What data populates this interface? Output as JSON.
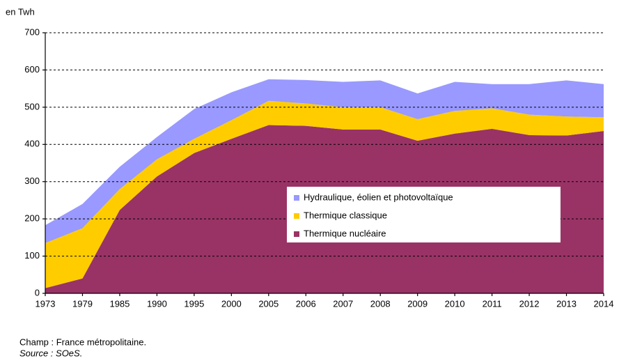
{
  "chart_data": {
    "type": "stacked_area",
    "y_label": "en Twh",
    "categories": [
      "1973",
      "1979",
      "1985",
      "1990",
      "1995",
      "2000",
      "2005",
      "2006",
      "2007",
      "2008",
      "2009",
      "2010",
      "2011",
      "2012",
      "2013",
      "2014"
    ],
    "series": [
      {
        "name": "Hydraulique, éolien et photovoltaïque",
        "color": "#9999ff",
        "values": [
          48,
          65,
          60,
          60,
          80,
          75,
          58,
          63,
          68,
          72,
          69,
          78,
          65,
          82,
          97,
          89
        ]
      },
      {
        "name": "Thermique classique",
        "color": "#ffcc00",
        "values": [
          121,
          135,
          56,
          46,
          38,
          50,
          65,
          60,
          60,
          60,
          58,
          61,
          55,
          55,
          51,
          37
        ]
      },
      {
        "name": "Thermique nucléaire",
        "color": "#993366",
        "values": [
          14,
          40,
          224,
          314,
          377,
          415,
          452,
          450,
          440,
          440,
          410,
          429,
          442,
          425,
          424,
          436
        ]
      }
    ],
    "ylim": [
      0,
      700
    ],
    "yticks": [
      0,
      100,
      200,
      300,
      400,
      500,
      600,
      700
    ],
    "grid": true,
    "legend": "center",
    "notes": [
      "Champ : France métropolitaine.",
      "Source : SOeS."
    ]
  }
}
